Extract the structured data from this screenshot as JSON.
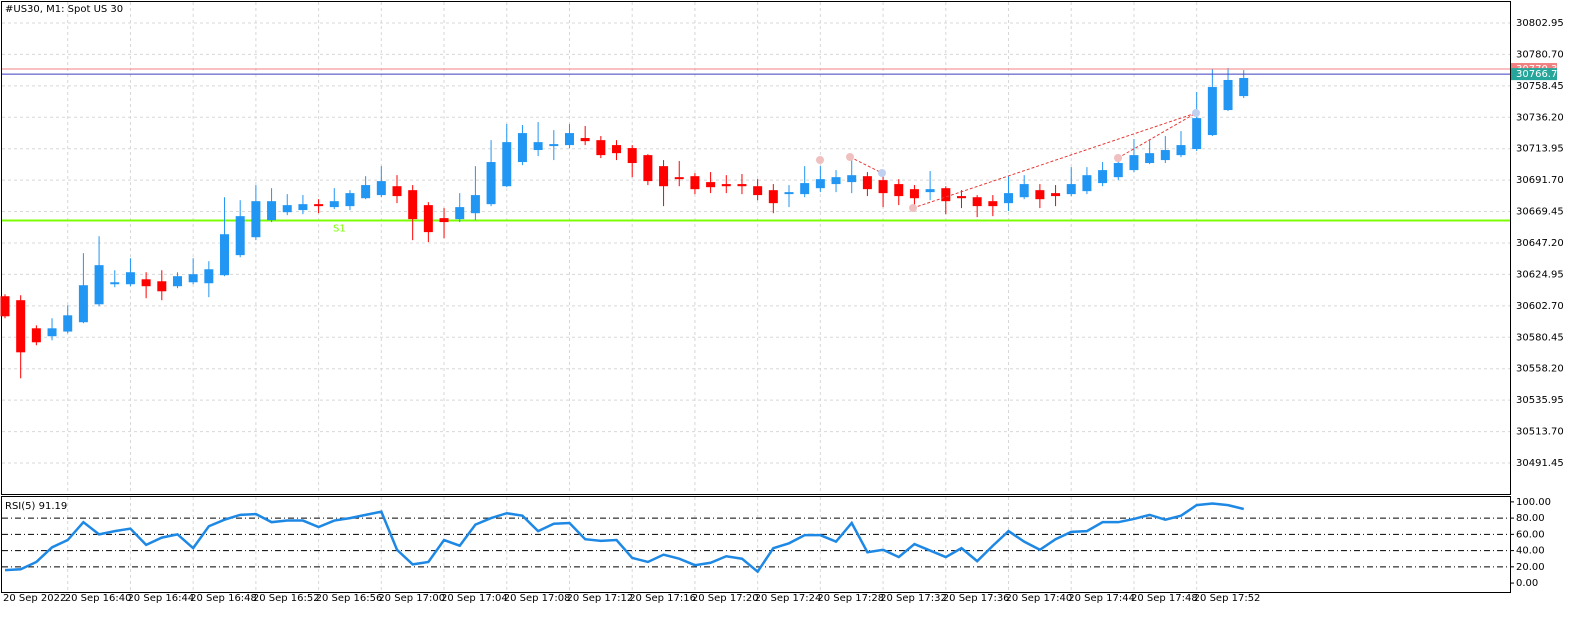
{
  "chart_data": [
    {
      "type": "candlestick",
      "title": "#US30, M1:  Spot US 30",
      "categories": [
        "20 Sep 2022",
        null,
        null,
        null,
        "20 Sep 16:40",
        null,
        null,
        null,
        "20 Sep 16:44",
        null,
        null,
        null,
        "20 Sep 16:48",
        null,
        null,
        null,
        "20 Sep 16:52",
        null,
        null,
        null,
        "20 Sep 16:56",
        null,
        null,
        null,
        "20 Sep 17:00",
        null,
        null,
        null,
        "20 Sep 17:04",
        null,
        null,
        null,
        "20 Sep 17:08",
        null,
        null,
        null,
        "20 Sep 17:12",
        null,
        null,
        null,
        "20 Sep 17:16",
        null,
        null,
        null,
        "20 Sep 17:20",
        null,
        null,
        null,
        "20 Sep 17:24",
        null,
        null,
        null,
        "20 Sep 17:28",
        null,
        null,
        null,
        "20 Sep 17:32",
        null,
        null,
        null,
        "20 Sep 17:36",
        null,
        null,
        null,
        "20 Sep 17:40",
        null,
        null,
        null,
        "20 Sep 17:44",
        null,
        null,
        null,
        "20 Sep 17:48",
        null,
        null,
        null,
        "20 Sep 17:52",
        null,
        null,
        null
      ],
      "open": [
        30609.5,
        30606.7,
        30586.8,
        30581.2,
        30584.5,
        30591.1,
        30603.8,
        30618.0,
        30618.0,
        30621.5,
        30620.1,
        30616.6,
        30619.4,
        30618.7,
        30624.4,
        30638.6,
        30651.3,
        30663.4,
        30669.0,
        30670.5,
        30674.7,
        30672.6,
        30673.3,
        30678.9,
        30681.1,
        30687.4,
        30684.6,
        30674.0,
        30664.8,
        30664.1,
        30668.3,
        30674.7,
        30687.4,
        30704.5,
        30713.0,
        30715.8,
        30716.5,
        30721.5,
        30720.0,
        30716.5,
        30714.4,
        30709.4,
        30701.6,
        30693.8,
        30694.5,
        30690.3,
        30688.9,
        30688.9,
        30687.4,
        30684.6,
        30681.8,
        30681.8,
        30686.0,
        30688.9,
        30690.3,
        30694.5,
        30691.7,
        30688.9,
        30685.3,
        30683.2,
        30686.0,
        30680.4,
        30679.6,
        30676.8,
        30675.4,
        30679.6,
        30684.6,
        30682.5,
        30681.8,
        30683.9,
        30689.6,
        30693.8,
        30698.8,
        30703.8,
        30705.9,
        30709.4,
        30713.7,
        30723.6,
        30741.3,
        30751.2
      ],
      "high": [
        30610.9,
        30610.2,
        30588.9,
        30593.9,
        30603.1,
        30640.0,
        30652.0,
        30627.9,
        30636.4,
        30626.5,
        30627.9,
        30626.5,
        30636.4,
        30634.3,
        30679.6,
        30677.5,
        30688.2,
        30686.0,
        30681.8,
        30681.1,
        30678.2,
        30686.0,
        30684.6,
        30694.5,
        30701.6,
        30695.2,
        30688.2,
        30676.1,
        30671.9,
        30682.5,
        30701.6,
        30720.0,
        30731.4,
        30730.7,
        30732.8,
        30727.1,
        30731.4,
        30730.0,
        30722.9,
        30720.0,
        30716.5,
        30710.1,
        30705.9,
        30705.2,
        30696.7,
        30697.4,
        30695.2,
        30696.0,
        30692.4,
        30688.9,
        30688.2,
        30701.6,
        30701.6,
        30698.8,
        30705.9,
        30697.4,
        30695.2,
        30692.4,
        30688.2,
        30698.1,
        30687.4,
        30684.6,
        30681.1,
        30681.1,
        30694.5,
        30695.2,
        30688.9,
        30688.2,
        30700.9,
        30700.9,
        30704.5,
        30710.1,
        30720.8,
        30720.0,
        30722.9,
        30726.4,
        30754.1,
        30770.4,
        30771.1,
        30769.6
      ],
      "low": [
        30593.9,
        30551.4,
        30574.8,
        30578.3,
        30583.3,
        30590.4,
        30602.4,
        30615.9,
        30616.6,
        30608.1,
        30606.7,
        30615.2,
        30618.0,
        30608.8,
        30623.7,
        30637.1,
        30649.2,
        30662.0,
        30666.9,
        30667.6,
        30668.3,
        30671.2,
        30670.5,
        30678.2,
        30679.6,
        30675.4,
        30649.2,
        30647.8,
        30650.6,
        30662.0,
        30663.4,
        30673.3,
        30686.7,
        30702.3,
        30708.7,
        30705.9,
        30714.4,
        30716.5,
        30707.3,
        30705.9,
        30693.8,
        30688.2,
        30673.3,
        30687.4,
        30681.8,
        30682.5,
        30682.5,
        30681.8,
        30677.5,
        30668.3,
        30672.6,
        30679.6,
        30683.2,
        30683.2,
        30682.5,
        30680.4,
        30672.6,
        30674.0,
        30671.9,
        30677.5,
        30667.6,
        30671.9,
        30665.5,
        30666.2,
        30669.8,
        30678.2,
        30671.9,
        30673.3,
        30680.4,
        30681.8,
        30687.4,
        30691.7,
        30697.4,
        30703.0,
        30703.8,
        30708.0,
        30712.3,
        30722.9,
        30740.6,
        30749.8
      ],
      "close": [
        30595.3,
        30569.8,
        30576.9,
        30586.8,
        30596.0,
        30617.3,
        30631.5,
        30619.4,
        30626.5,
        30616.6,
        30613.0,
        30623.7,
        30625.1,
        30628.6,
        30653.4,
        30666.2,
        30676.8,
        30676.8,
        30674.0,
        30674.7,
        30673.3,
        30676.8,
        30682.5,
        30688.2,
        30691.0,
        30680.4,
        30664.1,
        30654.9,
        30662.0,
        30672.6,
        30681.1,
        30704.5,
        30718.6,
        30725.0,
        30718.6,
        30717.2,
        30725.0,
        30719.3,
        30709.4,
        30710.8,
        30703.8,
        30691.0,
        30687.4,
        30692.4,
        30685.3,
        30686.7,
        30687.4,
        30687.4,
        30681.1,
        30675.4,
        30683.2,
        30689.6,
        30692.4,
        30693.8,
        30695.2,
        30685.3,
        30682.5,
        30680.4,
        30678.9,
        30685.3,
        30676.8,
        30678.9,
        30673.3,
        30673.3,
        30682.5,
        30688.9,
        30678.2,
        30680.4,
        30688.9,
        30695.2,
        30698.8,
        30703.8,
        30709.4,
        30710.8,
        30713.0,
        30716.5,
        30735.6,
        30757.6,
        30762.6,
        30764.0
      ],
      "up_color": "#2196f3",
      "down_color": "#ff0000",
      "ylim": [
        30469.5,
        30817.8
      ],
      "yticks": [
        30802.95,
        {
          "value": 30780.7,
          "label": "30780.70"
        },
        30758.45,
        {
          "value": 30736.2,
          "label": "30736.20"
        },
        30713.95,
        {
          "value": 30691.7,
          "label": "30691.70"
        },
        30669.45,
        {
          "value": 30647.2,
          "label": "30647.20"
        },
        30624.95,
        {
          "value": 30602.7,
          "label": "30602.70"
        },
        30580.45,
        {
          "value": 30558.2,
          "label": "30558.20"
        },
        30535.95,
        {
          "value": 30513.7,
          "label": "30513.70"
        },
        30491.45
      ],
      "grid": true,
      "price_lines": [
        {
          "value": 30770.35,
          "color": "#f08080",
          "label_color": "#f08080"
        },
        {
          "value": 30766.75,
          "color": "#3f3fbf",
          "label_color": "#26a69a"
        }
      ],
      "levels": [
        {
          "name": "S1",
          "value": 30663.1,
          "color": "#7cfc00"
        }
      ]
    },
    {
      "type": "line",
      "title": "RSI(5) 91.19",
      "values": [
        16,
        17,
        26,
        44,
        53,
        75,
        60,
        64,
        67,
        47,
        56,
        60,
        43,
        70,
        78,
        84,
        85,
        75,
        77,
        77,
        69,
        77,
        80,
        84,
        88,
        41,
        23,
        26,
        53,
        46,
        72,
        80,
        86,
        83,
        64,
        73,
        74,
        54,
        52,
        53,
        31,
        26,
        35,
        30,
        22,
        25,
        33,
        30,
        14,
        43,
        49,
        59,
        59,
        51,
        74,
        38,
        41,
        32,
        48,
        40,
        32,
        43,
        27,
        46,
        64,
        51,
        41,
        54,
        63,
        64,
        75,
        75,
        79,
        84,
        78,
        83,
        96,
        98,
        96,
        91.19
      ],
      "color": "#1e88e5",
      "ylim": [
        -11,
        106
      ],
      "yticks": [
        {
          "value": 100,
          "label": "100.00"
        },
        {
          "value": 80,
          "label": "80.00"
        },
        {
          "value": 60,
          "label": "60.00"
        },
        {
          "value": 40,
          "label": "40.00"
        },
        {
          "value": 20,
          "label": "20.00"
        },
        {
          "value": 0,
          "label": "0.00"
        }
      ],
      "levels": [
        20,
        40,
        60,
        80
      ]
    }
  ]
}
